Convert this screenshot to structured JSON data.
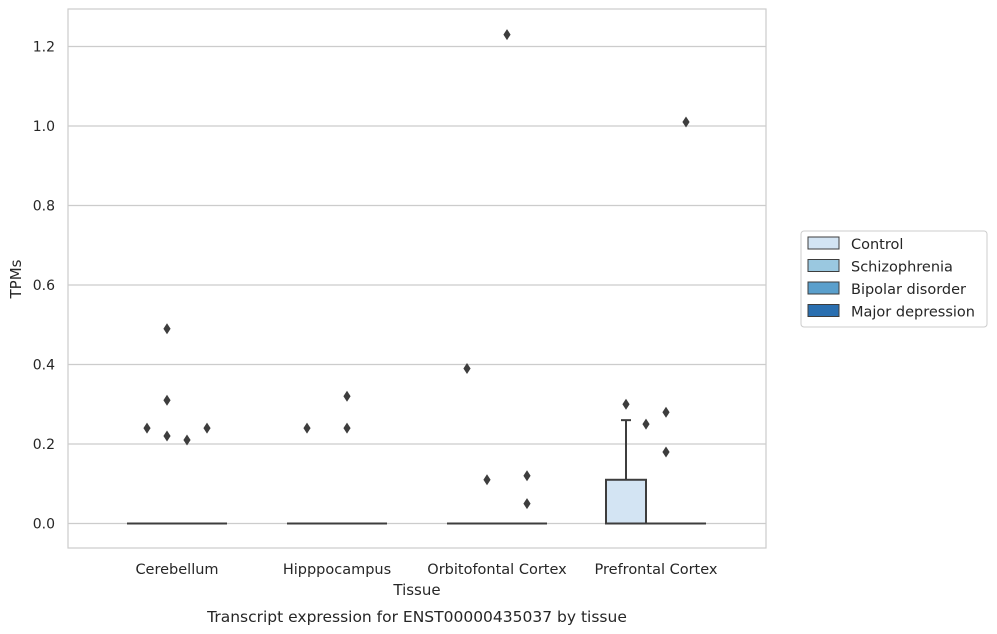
{
  "chart_data": {
    "type": "box",
    "caption": "Transcript expression for ENST00000435037 by tissue",
    "xlabel": "Tissue",
    "ylabel": "TPMs",
    "ylim": [
      -0.06,
      1.29
    ],
    "yticks": [
      "0.0",
      "0.2",
      "0.4",
      "0.6",
      "0.8",
      "1.0",
      "1.2"
    ],
    "grid": "horizontal",
    "legend_position": "right",
    "categories": [
      "Cerebellum",
      "Hipppocampus",
      "Orbitofontal Cortex",
      "Prefrontal Cortex"
    ],
    "series": [
      {
        "name": "Control",
        "color": "#d3e4f3"
      },
      {
        "name": "Schizophrenia",
        "color": "#9ac8e0"
      },
      {
        "name": "Bipolar disorder",
        "color": "#5a9fcc"
      },
      {
        "name": "Major depression",
        "color": "#2a6fb0"
      }
    ],
    "boxes": [
      {
        "category": "Cerebellum",
        "series": "Control",
        "q1": 0,
        "median": 0,
        "q3": 0,
        "whisker_low": 0,
        "whisker_high": 0,
        "outliers": [
          0.24
        ]
      },
      {
        "category": "Cerebellum",
        "series": "Schizophrenia",
        "q1": 0,
        "median": 0,
        "q3": 0,
        "whisker_low": 0,
        "whisker_high": 0,
        "outliers": [
          0.49,
          0.31,
          0.22
        ]
      },
      {
        "category": "Cerebellum",
        "series": "Bipolar disorder",
        "q1": 0,
        "median": 0,
        "q3": 0,
        "whisker_low": 0,
        "whisker_high": 0,
        "outliers": [
          0.21
        ]
      },
      {
        "category": "Cerebellum",
        "series": "Major depression",
        "q1": 0,
        "median": 0,
        "q3": 0,
        "whisker_low": 0,
        "whisker_high": 0,
        "outliers": [
          0.24
        ]
      },
      {
        "category": "Hipppocampus",
        "series": "Control",
        "q1": 0,
        "median": 0,
        "q3": 0,
        "whisker_low": 0,
        "whisker_high": 0,
        "outliers": [
          0.24
        ]
      },
      {
        "category": "Hipppocampus",
        "series": "Schizophrenia",
        "q1": 0,
        "median": 0,
        "q3": 0,
        "whisker_low": 0,
        "whisker_high": 0,
        "outliers": []
      },
      {
        "category": "Hipppocampus",
        "series": "Bipolar disorder",
        "q1": 0,
        "median": 0,
        "q3": 0,
        "whisker_low": 0,
        "whisker_high": 0,
        "outliers": [
          0.32,
          0.24
        ]
      },
      {
        "category": "Hipppocampus",
        "series": "Major depression",
        "q1": 0,
        "median": 0,
        "q3": 0,
        "whisker_low": 0,
        "whisker_high": 0,
        "outliers": []
      },
      {
        "category": "Orbitofontal Cortex",
        "series": "Control",
        "q1": 0,
        "median": 0,
        "q3": 0,
        "whisker_low": 0,
        "whisker_high": 0,
        "outliers": [
          0.39
        ]
      },
      {
        "category": "Orbitofontal Cortex",
        "series": "Schizophrenia",
        "q1": 0,
        "median": 0,
        "q3": 0,
        "whisker_low": 0,
        "whisker_high": 0,
        "outliers": [
          0.11
        ]
      },
      {
        "category": "Orbitofontal Cortex",
        "series": "Bipolar disorder",
        "q1": 0,
        "median": 0,
        "q3": 0,
        "whisker_low": 0,
        "whisker_high": 0,
        "outliers": [
          1.23
        ]
      },
      {
        "category": "Orbitofontal Cortex",
        "series": "Major depression",
        "q1": 0,
        "median": 0,
        "q3": 0,
        "whisker_low": 0,
        "whisker_high": 0,
        "outliers": [
          0.12,
          0.05
        ]
      },
      {
        "category": "Prefrontal Cortex",
        "series": "Control",
        "q1": 0,
        "median": 0,
        "q3": 0.11,
        "whisker_low": 0,
        "whisker_high": 0.26,
        "outliers": [
          0.3
        ]
      },
      {
        "category": "Prefrontal Cortex",
        "series": "Schizophrenia",
        "q1": 0,
        "median": 0,
        "q3": 0,
        "whisker_low": 0,
        "whisker_high": 0,
        "outliers": [
          0.25
        ]
      },
      {
        "category": "Prefrontal Cortex",
        "series": "Bipolar disorder",
        "q1": 0,
        "median": 0,
        "q3": 0,
        "whisker_low": 0,
        "whisker_high": 0,
        "outliers": [
          0.28,
          0.18
        ]
      },
      {
        "category": "Prefrontal Cortex",
        "series": "Major depression",
        "q1": 0,
        "median": 0,
        "q3": 0,
        "whisker_low": 0,
        "whisker_high": 0,
        "outliers": [
          1.01
        ]
      }
    ]
  }
}
